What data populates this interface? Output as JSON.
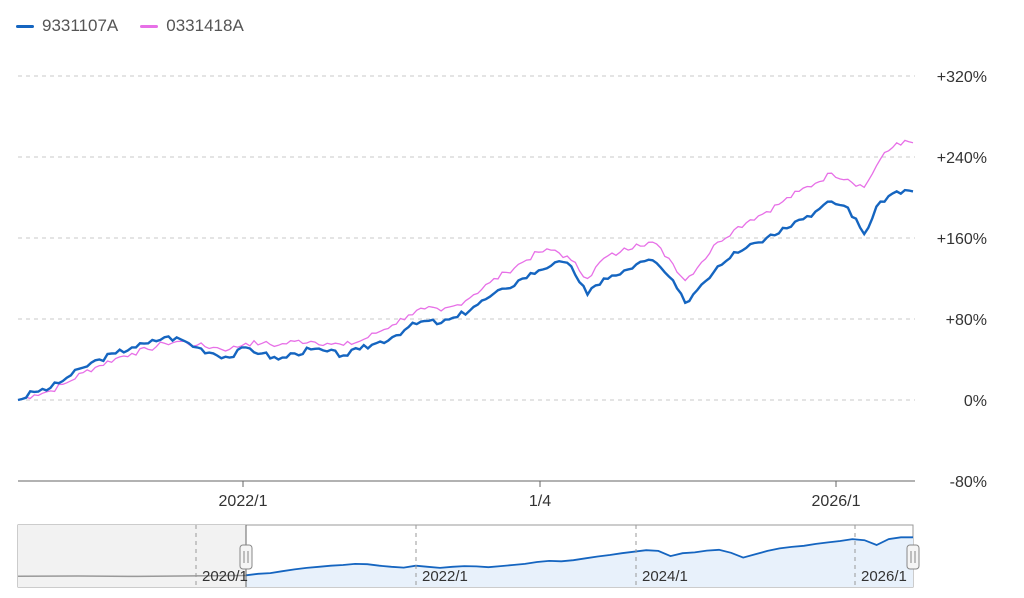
{
  "chart_data": {
    "type": "line",
    "legend_position": "top-left",
    "grid": true,
    "y_axis": {
      "side": "right",
      "ylim": [
        -80,
        320
      ],
      "ticks": [
        "+320%",
        "+240%",
        "+160%",
        "+80%",
        "0%",
        "-80%"
      ],
      "tick_values": [
        320,
        240,
        160,
        80,
        0,
        -80
      ]
    },
    "x_axis": {
      "ticks": [
        "2022/1",
        "1/4",
        "2026/1"
      ]
    },
    "series": [
      {
        "name": "9331107A",
        "color": "#1565c0",
        "y": [
          0,
          8,
          12,
          22,
          32,
          40,
          46,
          52,
          56,
          62,
          60,
          52,
          46,
          42,
          52,
          46,
          40,
          46,
          50,
          48,
          44,
          50,
          56,
          62,
          72,
          78,
          76,
          82,
          92,
          102,
          110,
          120,
          128,
          136,
          132,
          104,
          120,
          124,
          134,
          138,
          122,
          96,
          114,
          132,
          146,
          154,
          160,
          170,
          178,
          186,
          196,
          190,
          164,
          196,
          206,
          206
        ]
      },
      {
        "name": "0331418A",
        "color": "#e770e7",
        "y": [
          0,
          5,
          9,
          17,
          27,
          34,
          41,
          46,
          50,
          56,
          58,
          54,
          52,
          50,
          56,
          56,
          54,
          58,
          58,
          56,
          54,
          58,
          66,
          74,
          84,
          90,
          88,
          94,
          104,
          116,
          126,
          136,
          146,
          148,
          138,
          120,
          140,
          146,
          154,
          156,
          140,
          118,
          136,
          156,
          168,
          178,
          186,
          196,
          206,
          214,
          224,
          218,
          210,
          238,
          254,
          254
        ]
      }
    ],
    "navigator": {
      "ticks": [
        "2020/1",
        "2022/1",
        "2024/1",
        "2026/1"
      ]
    }
  }
}
